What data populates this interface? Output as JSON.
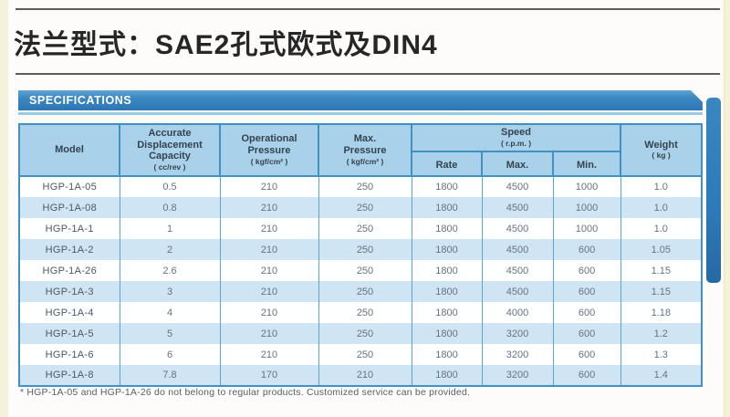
{
  "page": {
    "title": "法兰型式：SAE2孔式欧式及DIN4"
  },
  "section": {
    "banner_label": "SPECIFICATIONS"
  },
  "table": {
    "columns": {
      "model": {
        "label": "Model"
      },
      "displacement": {
        "label": "Accurate\nDisplacement\nCapacity",
        "unit": "( cc/rev )"
      },
      "operational_pressure": {
        "label": "Operational\nPressure",
        "unit": "( kgf/cm² )"
      },
      "max_pressure": {
        "label": "Max.\nPressure",
        "unit": "( kgf/cm² )"
      },
      "speed": {
        "label": "Speed",
        "unit": "( r.p.m. )",
        "sub": [
          "Rate",
          "Max.",
          "Min."
        ]
      },
      "weight": {
        "label": "Weight",
        "unit": "( kg )"
      }
    },
    "rows": [
      [
        "HGP-1A-05",
        "0.5",
        "210",
        "250",
        "1800",
        "4500",
        "1000",
        "1.0"
      ],
      [
        "HGP-1A-08",
        "0.8",
        "210",
        "250",
        "1800",
        "4500",
        "1000",
        "1.0"
      ],
      [
        "HGP-1A-1",
        "1",
        "210",
        "250",
        "1800",
        "4500",
        "1000",
        "1.0"
      ],
      [
        "HGP-1A-2",
        "2",
        "210",
        "250",
        "1800",
        "4500",
        "600",
        "1.05"
      ],
      [
        "HGP-1A-26",
        "2.6",
        "210",
        "250",
        "1800",
        "4500",
        "600",
        "1.15"
      ],
      [
        "HGP-1A-3",
        "3",
        "210",
        "250",
        "1800",
        "4500",
        "600",
        "1.15"
      ],
      [
        "HGP-1A-4",
        "4",
        "210",
        "250",
        "1800",
        "4000",
        "600",
        "1.18"
      ],
      [
        "HGP-1A-5",
        "5",
        "210",
        "250",
        "1800",
        "3200",
        "600",
        "1.2"
      ],
      [
        "HGP-1A-6",
        "6",
        "210",
        "250",
        "1800",
        "3200",
        "600",
        "1.3"
      ],
      [
        "HGP-1A-8",
        "7.8",
        "170",
        "210",
        "1800",
        "3200",
        "600",
        "1.4"
      ]
    ],
    "footnote": "* HGP-1A-05 and HGP-1A-26 do not belong to regular products. Customized service can be provided."
  },
  "colors": {
    "accent_blue": "#2d76b4",
    "header_cell_bg": "#a9d1e9",
    "row_stripe": "#cfe5f4",
    "table_border": "#4090c2",
    "page_edge": "#f6f2d8"
  }
}
